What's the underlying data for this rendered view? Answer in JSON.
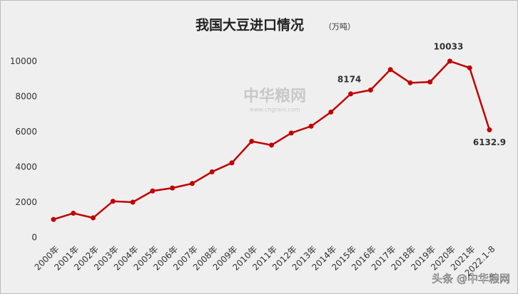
{
  "chart_data": {
    "type": "line",
    "title": "我国大豆进口情况",
    "unit": "（万吨）",
    "categories": [
      "2000年",
      "2001年",
      "2002年",
      "2003年",
      "2004年",
      "2005年",
      "2006年",
      "2007年",
      "2008年",
      "2009年",
      "2010年",
      "2011年",
      "2012年",
      "2013年",
      "2014年",
      "2015年",
      "2016年",
      "2017年",
      "2018年",
      "2019年",
      "2020年",
      "2021年",
      "2022.1-8"
    ],
    "series": [
      {
        "name": "大豆进口",
        "color": "#c00000",
        "values": [
          1042,
          1394,
          1131,
          2074,
          2023,
          2659,
          2827,
          3082,
          3744,
          4255,
          5480,
          5264,
          5950,
          6338,
          7140,
          8174,
          8391,
          9553,
          8803,
          8851,
          10033,
          9652,
          6132.9
        ],
        "value_labels": [
          null,
          null,
          null,
          null,
          null,
          null,
          null,
          null,
          null,
          null,
          null,
          null,
          null,
          null,
          null,
          "8174",
          null,
          null,
          null,
          null,
          "10033",
          null,
          "6132.9"
        ]
      }
    ],
    "ylim": [
      0,
      11000
    ],
    "yticks": [
      0,
      2000,
      4000,
      6000,
      8000,
      10000
    ],
    "watermark": "中华粮网",
    "watermark_url": "www.cngrain.com",
    "footer": "头条 @中华粮网"
  }
}
